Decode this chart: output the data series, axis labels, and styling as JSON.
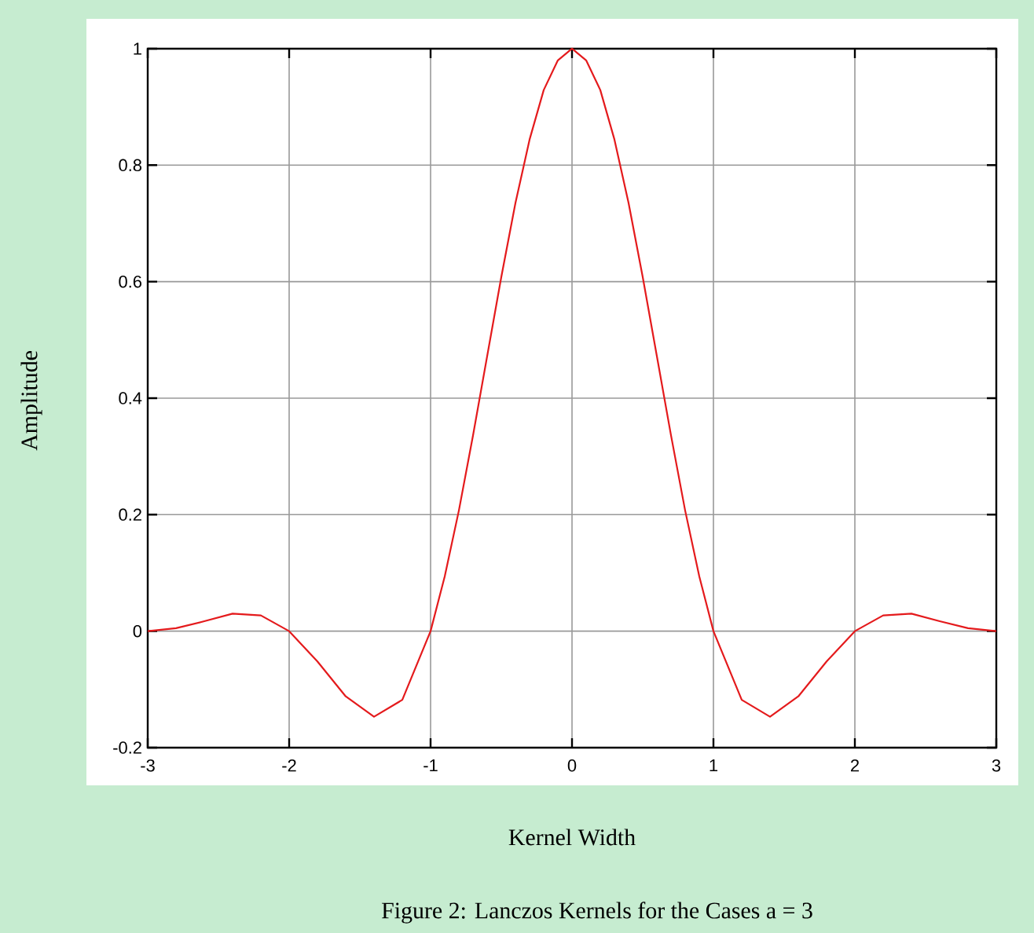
{
  "chart_data": {
    "type": "line",
    "xlabel": "Kernel Width",
    "ylabel": "Amplitude",
    "annotations": [
      "Figure 2: Lanczos Kernels for the Cases a = 3"
    ],
    "x": [
      -3,
      -2.8,
      -2.6,
      -2.4,
      -2.2,
      -2,
      -1.8,
      -1.6,
      -1.4,
      -1.2,
      -1,
      -0.9,
      -0.8,
      -0.7,
      -0.6,
      -0.5,
      -0.4,
      -0.3,
      -0.2,
      -0.1,
      0,
      0.1,
      0.2,
      0.3,
      0.4,
      0.5,
      0.6,
      0.7,
      0.8,
      0.9,
      1,
      1.2,
      1.4,
      1.6,
      1.8,
      2,
      2.2,
      2.4,
      2.6,
      2.8,
      3
    ],
    "values": [
      0,
      0.005,
      0.017,
      0.03,
      0.027,
      0,
      -0.052,
      -0.112,
      -0.147,
      -0.118,
      0,
      0.094,
      0.207,
      0.336,
      0.472,
      0.608,
      0.735,
      0.844,
      0.929,
      0.98,
      1,
      0.98,
      0.929,
      0.844,
      0.735,
      0.608,
      0.472,
      0.336,
      0.207,
      0.094,
      0,
      -0.118,
      -0.147,
      -0.112,
      -0.052,
      0,
      0.027,
      0.03,
      0.017,
      0.005,
      0
    ],
    "color": "#e41a1c",
    "xlim": [
      -3,
      3
    ],
    "ylim": [
      -0.2,
      1
    ],
    "xticks": [
      -3,
      -2,
      -1,
      0,
      1,
      2,
      3
    ],
    "yticks": [
      -0.2,
      0,
      0.2,
      0.4,
      0.6,
      0.8,
      1
    ],
    "grid": true
  }
}
